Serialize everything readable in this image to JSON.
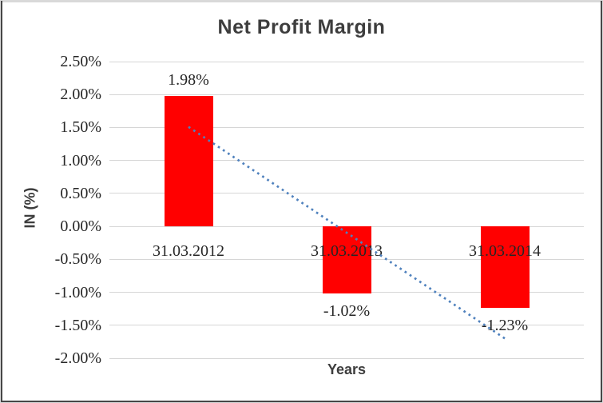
{
  "frame": {
    "background": "#ffffff",
    "outer_border_color": "#d9d9d9",
    "inner_border_color": "#474747"
  },
  "chart_data": {
    "type": "bar",
    "title": "Net Profit Margin",
    "xlabel": "Years",
    "ylabel": "IN (%)",
    "categories": [
      "31.03.2012",
      "31.03.2013",
      "31.03.2014"
    ],
    "values": [
      1.98,
      -1.02,
      -1.23
    ],
    "data_labels": [
      "1.98%",
      "-1.02%",
      "-1.23%"
    ],
    "y_ticks": [
      {
        "value": 2.5,
        "label": "2.50%"
      },
      {
        "value": 2.0,
        "label": "2.00%"
      },
      {
        "value": 1.5,
        "label": "1.50%"
      },
      {
        "value": 1.0,
        "label": "1.00%"
      },
      {
        "value": 0.5,
        "label": "0.50%"
      },
      {
        "value": 0.0,
        "label": "0.00%"
      },
      {
        "value": -0.5,
        "label": "-0.50%"
      },
      {
        "value": -1.0,
        "label": "-1.00%"
      },
      {
        "value": -1.5,
        "label": "-1.50%"
      },
      {
        "value": -2.0,
        "label": "-2.00%"
      }
    ],
    "ylim": [
      -2.0,
      2.5
    ],
    "grid": true,
    "legend": false,
    "colors": {
      "bar": "#ff0000",
      "trendline": "#4f81bd",
      "gridline": "#d6d6d6",
      "title_text": "#3d3d3d",
      "axis_title_text": "#3d3d3d",
      "label_text": "#262626"
    },
    "trendline": {
      "type": "linear",
      "style": "dotted",
      "start_value": 1.51,
      "end_value": -1.7
    }
  }
}
